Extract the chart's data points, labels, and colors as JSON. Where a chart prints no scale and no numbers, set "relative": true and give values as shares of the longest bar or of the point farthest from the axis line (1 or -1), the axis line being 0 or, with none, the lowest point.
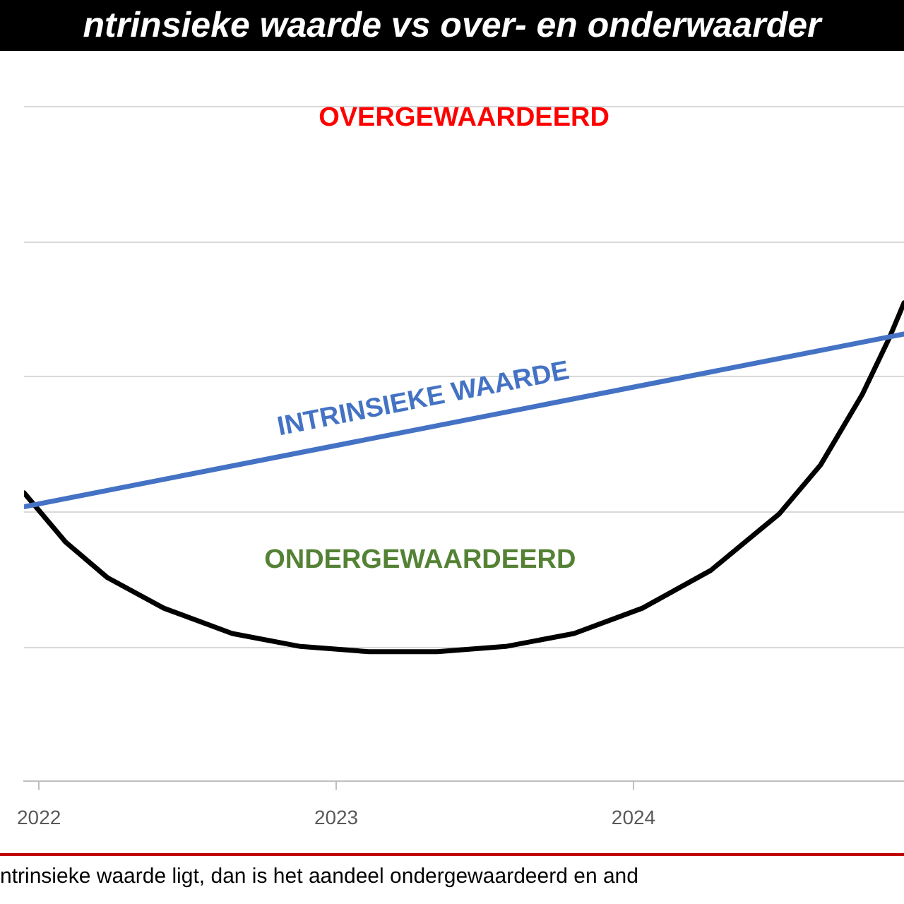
{
  "chart_data": {
    "type": "line",
    "title": "ntrinsieke waarde vs over- en onderwaarder",
    "relative": true,
    "grid": "y",
    "legend": false,
    "marker": "none",
    "line_style": "solid",
    "xlim": [
      2021.95,
      2024.91
    ],
    "xticks": [
      2022,
      2023,
      2024
    ],
    "series": [
      {
        "name": "INTRINSIEKE WAARDE",
        "color": "#4472c4",
        "x": [
          2021.95,
          2024.91
        ],
        "values": [
          0.574,
          0.935
        ]
      },
      {
        "color": "#000000",
        "x": [
          2021.95,
          2022.09,
          2022.23,
          2022.42,
          2022.65,
          2022.88,
          2023.11,
          2023.34,
          2023.57,
          2023.8,
          2024.03,
          2024.26,
          2024.49,
          2024.63,
          2024.77,
          2024.86,
          2024.91
        ],
        "values": [
          0.603,
          0.5,
          0.426,
          0.362,
          0.309,
          0.282,
          0.271,
          0.271,
          0.282,
          0.309,
          0.362,
          0.441,
          0.559,
          0.662,
          0.809,
          0.926,
          1
        ]
      }
    ],
    "annotations": [
      "OVERGEWAARDEERD",
      "ONDERGEWAARDEERD",
      "ntrinsieke waarde ligt, dan is het aandeel ondergewaardeerd en and"
    ]
  }
}
